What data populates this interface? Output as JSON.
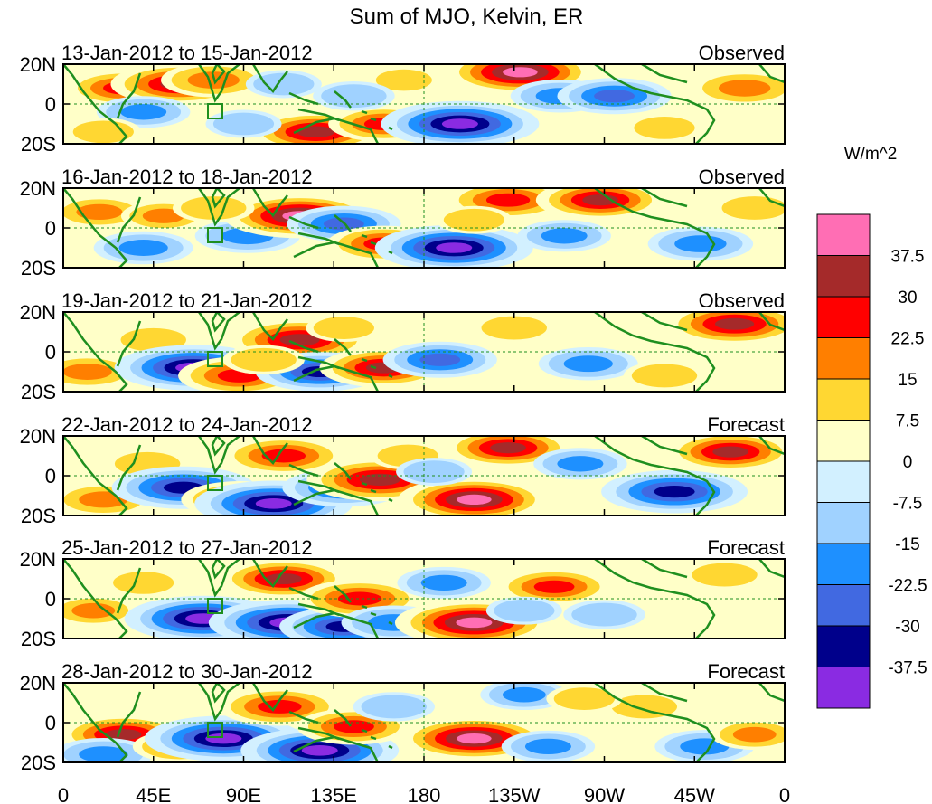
{
  "title": "Sum of MJO, Kelvin, ER",
  "units": "W/m^2",
  "y_ticks": [
    "20N",
    "0",
    "20S"
  ],
  "x_ticks": [
    "0",
    "45E",
    "90E",
    "135E",
    "180",
    "135W",
    "90W",
    "45W",
    "0"
  ],
  "colorbar": {
    "labels": [
      "37.5",
      "30",
      "22.5",
      "15",
      "7.5",
      "0",
      "-7.5",
      "-15",
      "-22.5",
      "-30",
      "-37.5"
    ],
    "colors": [
      "#ff6eb4",
      "#a52a2a",
      "#ff0000",
      "#ff7f00",
      "#ffd732",
      "#ffffc8",
      "#d2f0ff",
      "#a0d2ff",
      "#1e90ff",
      "#4169e1",
      "#00008b",
      "#8a2be2"
    ]
  },
  "panels": [
    {
      "dates": "13-Jan-2012 to 15-Jan-2012",
      "label": "Observed"
    },
    {
      "dates": "16-Jan-2012 to 18-Jan-2012",
      "label": "Observed"
    },
    {
      "dates": "19-Jan-2012 to 21-Jan-2012",
      "label": "Observed"
    },
    {
      "dates": "22-Jan-2012 to 24-Jan-2012",
      "label": "Forecast"
    },
    {
      "dates": "25-Jan-2012 to 27-Jan-2012",
      "label": "Forecast"
    },
    {
      "dates": "28-Jan-2012 to 30-Jan-2012",
      "label": "Forecast"
    }
  ],
  "anomalies": [
    [
      {
        "lon": 30,
        "lat": 8,
        "v": 25
      },
      {
        "lon": 58,
        "lat": 10,
        "v": 33
      },
      {
        "lon": 75,
        "lat": 12,
        "v": 22
      },
      {
        "lon": 110,
        "lat": 10,
        "v": -12
      },
      {
        "lon": 126,
        "lat": -14,
        "v": 32
      },
      {
        "lon": 160,
        "lat": -10,
        "v": 24
      },
      {
        "lon": 198,
        "lat": -10,
        "v": -40
      },
      {
        "lon": 228,
        "lat": 16,
        "v": 38
      },
      {
        "lon": 248,
        "lat": 4,
        "v": -20
      },
      {
        "lon": 275,
        "lat": 4,
        "v": -25
      },
      {
        "lon": 340,
        "lat": 8,
        "v": 22
      },
      {
        "lon": 40,
        "lat": -4,
        "v": -18
      },
      {
        "lon": 90,
        "lat": -10,
        "v": -12
      },
      {
        "lon": 300,
        "lat": -12,
        "v": 12
      },
      {
        "lon": 170,
        "lat": 12,
        "v": 10
      },
      {
        "lon": 20,
        "lat": -14,
        "v": 12
      },
      {
        "lon": 145,
        "lat": 4,
        "v": -14
      }
    ],
    [
      {
        "lon": 18,
        "lat": 8,
        "v": 18
      },
      {
        "lon": 50,
        "lat": 6,
        "v": 15
      },
      {
        "lon": 40,
        "lat": -10,
        "v": -20
      },
      {
        "lon": 92,
        "lat": -4,
        "v": -22
      },
      {
        "lon": 118,
        "lat": 6,
        "v": 38
      },
      {
        "lon": 140,
        "lat": 2,
        "v": -25
      },
      {
        "lon": 160,
        "lat": -8,
        "v": 25
      },
      {
        "lon": 195,
        "lat": -10,
        "v": -40
      },
      {
        "lon": 222,
        "lat": 14,
        "v": 28
      },
      {
        "lon": 268,
        "lat": 14,
        "v": 30
      },
      {
        "lon": 250,
        "lat": -4,
        "v": -18
      },
      {
        "lon": 318,
        "lat": -8,
        "v": -22
      },
      {
        "lon": 345,
        "lat": 10,
        "v": 14
      },
      {
        "lon": 205,
        "lat": 4,
        "v": 12
      },
      {
        "lon": 75,
        "lat": 10,
        "v": 14
      }
    ],
    [
      {
        "lon": 12,
        "lat": -10,
        "v": 20
      },
      {
        "lon": 45,
        "lat": 6,
        "v": 14
      },
      {
        "lon": 65,
        "lat": -8,
        "v": -40
      },
      {
        "lon": 88,
        "lat": -12,
        "v": 28
      },
      {
        "lon": 118,
        "lat": 6,
        "v": 35
      },
      {
        "lon": 128,
        "lat": -10,
        "v": -30
      },
      {
        "lon": 160,
        "lat": -8,
        "v": 30
      },
      {
        "lon": 188,
        "lat": -4,
        "v": -25
      },
      {
        "lon": 225,
        "lat": 12,
        "v": 14
      },
      {
        "lon": 262,
        "lat": -6,
        "v": -20
      },
      {
        "lon": 335,
        "lat": 14,
        "v": 34
      },
      {
        "lon": 300,
        "lat": -12,
        "v": 14
      },
      {
        "lon": 140,
        "lat": 12,
        "v": 12
      },
      {
        "lon": 100,
        "lat": -4,
        "v": 14
      }
    ],
    [
      {
        "lon": 20,
        "lat": -12,
        "v": 20
      },
      {
        "lon": 42,
        "lat": 6,
        "v": 14
      },
      {
        "lon": 60,
        "lat": -6,
        "v": -35
      },
      {
        "lon": 88,
        "lat": -12,
        "v": 26
      },
      {
        "lon": 105,
        "lat": -14,
        "v": -40
      },
      {
        "lon": 110,
        "lat": 10,
        "v": 28
      },
      {
        "lon": 140,
        "lat": -6,
        "v": -28
      },
      {
        "lon": 158,
        "lat": -2,
        "v": 36
      },
      {
        "lon": 172,
        "lat": 10,
        "v": 12
      },
      {
        "lon": 205,
        "lat": -12,
        "v": 38
      },
      {
        "lon": 222,
        "lat": 14,
        "v": 30
      },
      {
        "lon": 258,
        "lat": 6,
        "v": -18
      },
      {
        "lon": 305,
        "lat": -8,
        "v": -36
      },
      {
        "lon": 333,
        "lat": 12,
        "v": 30
      },
      {
        "lon": 185,
        "lat": 2,
        "v": -12
      }
    ],
    [
      {
        "lon": 15,
        "lat": -6,
        "v": 16
      },
      {
        "lon": 40,
        "lat": 8,
        "v": 12
      },
      {
        "lon": 70,
        "lat": -10,
        "v": -40
      },
      {
        "lon": 112,
        "lat": -12,
        "v": -40
      },
      {
        "lon": 110,
        "lat": 10,
        "v": 30
      },
      {
        "lon": 140,
        "lat": -14,
        "v": -30
      },
      {
        "lon": 148,
        "lat": 0,
        "v": 28
      },
      {
        "lon": 165,
        "lat": -12,
        "v": -22
      },
      {
        "lon": 205,
        "lat": -12,
        "v": 40
      },
      {
        "lon": 245,
        "lat": 6,
        "v": 25
      },
      {
        "lon": 190,
        "lat": 8,
        "v": -18
      },
      {
        "lon": 270,
        "lat": -8,
        "v": -14
      },
      {
        "lon": 330,
        "lat": 12,
        "v": 14
      },
      {
        "lon": 230,
        "lat": -6,
        "v": -12
      }
    ],
    [
      {
        "lon": 30,
        "lat": -6,
        "v": 30
      },
      {
        "lon": 20,
        "lat": -16,
        "v": -20
      },
      {
        "lon": 58,
        "lat": -12,
        "v": 18
      },
      {
        "lon": 80,
        "lat": -8,
        "v": -40
      },
      {
        "lon": 108,
        "lat": 8,
        "v": 28
      },
      {
        "lon": 128,
        "lat": -14,
        "v": -40
      },
      {
        "lon": 145,
        "lat": -2,
        "v": 25
      },
      {
        "lon": 165,
        "lat": 8,
        "v": -14
      },
      {
        "lon": 205,
        "lat": -8,
        "v": 38
      },
      {
        "lon": 230,
        "lat": 14,
        "v": -16
      },
      {
        "lon": 242,
        "lat": -12,
        "v": -18
      },
      {
        "lon": 290,
        "lat": 8,
        "v": 14
      },
      {
        "lon": 320,
        "lat": -12,
        "v": -20
      },
      {
        "lon": 345,
        "lat": -6,
        "v": 16
      },
      {
        "lon": 260,
        "lat": 12,
        "v": 12
      }
    ]
  ]
}
